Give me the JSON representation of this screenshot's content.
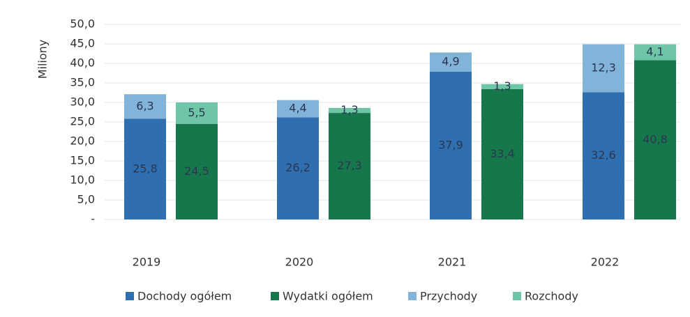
{
  "chart_data": {
    "type": "stacked-grouped-bar",
    "ylabel": "Miliony",
    "categories": [
      "2019",
      "2020",
      "2021",
      "2022"
    ],
    "series": [
      {
        "name": "Dochody ogółem",
        "color": "#2f6fb0",
        "stack": 0,
        "values": [
          25.8,
          26.2,
          37.9,
          32.6
        ],
        "value_labels": [
          "25,8",
          "26,2",
          "37,9",
          "32,6"
        ]
      },
      {
        "name": "Wydatki ogółem",
        "color": "#16784a",
        "stack": 1,
        "values": [
          24.5,
          27.3,
          33.4,
          40.8
        ],
        "value_labels": [
          "24,5",
          "27,3",
          "33,4",
          "40,8"
        ]
      },
      {
        "name": "Przychody",
        "color": "#82b3d9",
        "stack": 0,
        "values": [
          6.3,
          4.4,
          4.9,
          12.3
        ],
        "value_labels": [
          "6,3",
          "4,4",
          "4,9",
          "12,3"
        ]
      },
      {
        "name": "Rozchody",
        "color": "#6ec6a6",
        "stack": 1,
        "values": [
          5.5,
          1.3,
          1.3,
          4.1
        ],
        "value_labels": [
          "5,5",
          "1,3",
          "1,3",
          "4,1"
        ]
      }
    ],
    "ylim": [
      0,
      50
    ],
    "yticks": [
      {
        "value": 0,
        "label": "-"
      },
      {
        "value": 5,
        "label": "5,0"
      },
      {
        "value": 10,
        "label": "10,0"
      },
      {
        "value": 15,
        "label": "15,0"
      },
      {
        "value": 20,
        "label": "20,0"
      },
      {
        "value": 25,
        "label": "25,0"
      },
      {
        "value": 30,
        "label": "30,0"
      },
      {
        "value": 35,
        "label": "35,0"
      },
      {
        "value": 40,
        "label": "40,0"
      },
      {
        "value": 45,
        "label": "45,0"
      },
      {
        "value": 50,
        "label": "50,0"
      }
    ],
    "grid": true
  }
}
